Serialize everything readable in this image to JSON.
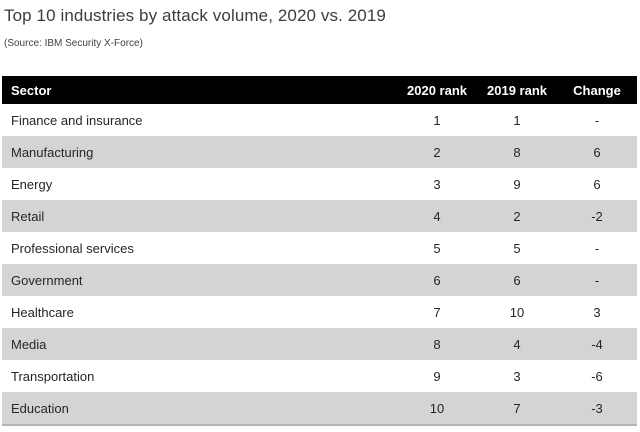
{
  "title": "Top 10 industries by attack volume, 2020 vs. 2019",
  "source": "(Source: IBM Security X-Force)",
  "table": {
    "columns": [
      "Sector",
      "2020 rank",
      "2019 rank",
      "Change"
    ],
    "rows": [
      {
        "sector": "Finance and insurance",
        "rank2020": "1",
        "rank2019": "1",
        "change": "-"
      },
      {
        "sector": "Manufacturing",
        "rank2020": "2",
        "rank2019": "8",
        "change": "6"
      },
      {
        "sector": "Energy",
        "rank2020": "3",
        "rank2019": "9",
        "change": "6"
      },
      {
        "sector": "Retail",
        "rank2020": "4",
        "rank2019": "2",
        "change": "-2"
      },
      {
        "sector": "Professional services",
        "rank2020": "5",
        "rank2019": "5",
        "change": "-"
      },
      {
        "sector": "Government",
        "rank2020": "6",
        "rank2019": "6",
        "change": "-"
      },
      {
        "sector": "Healthcare",
        "rank2020": "7",
        "rank2019": "10",
        "change": "3"
      },
      {
        "sector": "Media",
        "rank2020": "8",
        "rank2019": "4",
        "change": "-4"
      },
      {
        "sector": "Transportation",
        "rank2020": "9",
        "rank2019": "3",
        "change": "-6"
      },
      {
        "sector": "Education",
        "rank2020": "10",
        "rank2019": "7",
        "change": "-3"
      }
    ]
  },
  "colors": {
    "header_bg": "#000000",
    "header_text": "#ffffff",
    "stripe_row_bg": "#d4d4d4",
    "body_text": "#262626",
    "title_text": "#3d3d3d",
    "source_text": "#404040",
    "table_bottom_border": "#b3b6b8"
  },
  "chart_data": {
    "type": "table",
    "title": "Top 10 industries by attack volume, 2020 vs. 2019",
    "subtitle": "(Source: IBM Security X-Force)",
    "columns": [
      "Sector",
      "2020 rank",
      "2019 rank",
      "Change"
    ],
    "categories": [
      "Finance and insurance",
      "Manufacturing",
      "Energy",
      "Retail",
      "Professional services",
      "Government",
      "Healthcare",
      "Media",
      "Transportation",
      "Education"
    ],
    "series": [
      {
        "name": "2020 rank",
        "values": [
          1,
          2,
          3,
          4,
          5,
          6,
          7,
          8,
          9,
          10
        ]
      },
      {
        "name": "2019 rank",
        "values": [
          1,
          8,
          9,
          2,
          5,
          6,
          10,
          4,
          3,
          7
        ]
      },
      {
        "name": "Change",
        "values": [
          0,
          6,
          6,
          -2,
          0,
          0,
          3,
          -4,
          -6,
          -3
        ]
      }
    ],
    "layout_hints": {
      "header_style": "black background, white bold text",
      "zebra_striping": "even rows light gray",
      "numeric_columns_alignment": "center"
    }
  }
}
